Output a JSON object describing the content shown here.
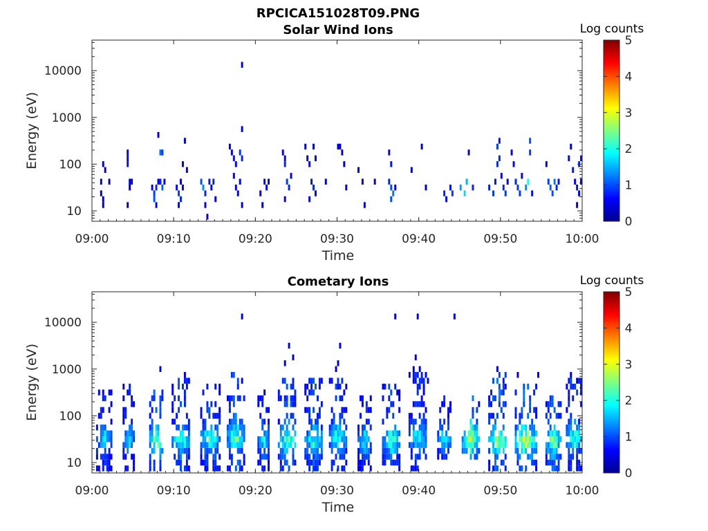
{
  "figure_title": "RPCICA151028T09.PNG",
  "colors": {
    "colormap": [
      "#00008f",
      "#0000ff",
      "#0080ff",
      "#00ffff",
      "#80ff80",
      "#ffff00",
      "#ff8000",
      "#ff0000",
      "#800000"
    ],
    "axes": "#262626",
    "background": "#ffffff"
  },
  "chart_data": [
    {
      "type": "heatmap",
      "title": "Solar Wind Ions",
      "xlabel": "Time",
      "ylabel": "Energy (eV)",
      "x_ticks": [
        "09:00",
        "09:10",
        "09:20",
        "09:30",
        "09:40",
        "09:50",
        "10:00"
      ],
      "x_range_minutes": [
        0,
        60
      ],
      "y_scale": "log",
      "y_range": [
        6,
        45000
      ],
      "y_ticks": [
        10,
        100,
        1000,
        10000
      ],
      "y_tick_labels": [
        "10",
        "100",
        "1000",
        "10000"
      ],
      "colorbar": {
        "label": "Log counts",
        "range": [
          0,
          5
        ],
        "ticks": [
          "0",
          "1",
          "2",
          "3",
          "4",
          "5"
        ]
      },
      "bins_per_minute": 4,
      "energy_bins_per_decade": 8,
      "cells": [
        [
          1.0,
          42,
          0.4
        ],
        [
          1.0,
          26,
          0.3
        ],
        [
          1.2,
          16,
          0.3
        ],
        [
          1.2,
          95,
          0.4
        ],
        [
          1.3,
          13,
          0.2
        ],
        [
          1.4,
          81,
          0.3
        ],
        [
          1.9,
          42,
          0.3
        ],
        [
          4.3,
          180,
          0.5
        ],
        [
          4.3,
          130,
          0.6
        ],
        [
          4.3,
          95,
          0.7
        ],
        [
          4.5,
          42,
          0.5
        ],
        [
          4.5,
          31,
          0.4
        ],
        [
          4.3,
          13,
          0.3
        ],
        [
          4.8,
          42,
          0.3
        ],
        [
          7.3,
          31,
          0.6
        ],
        [
          7.5,
          16,
          1.0
        ],
        [
          7.5,
          22,
          0.9
        ],
        [
          7.8,
          31,
          0.8
        ],
        [
          7.8,
          13,
          0.6
        ],
        [
          8.0,
          42,
          0.5
        ],
        [
          8.0,
          450,
          0.4
        ],
        [
          8.3,
          200,
          1.2
        ],
        [
          8.5,
          160,
          0.9
        ],
        [
          8.3,
          42,
          0.8
        ],
        [
          8.5,
          31,
          1.1
        ],
        [
          8.7,
          42,
          0.6
        ],
        [
          10.3,
          31,
          0.7
        ],
        [
          10.5,
          22,
          0.9
        ],
        [
          10.7,
          16,
          0.8
        ],
        [
          10.5,
          13,
          0.6
        ],
        [
          10.8,
          42,
          0.5
        ],
        [
          11.0,
          31,
          0.6
        ],
        [
          11.0,
          110,
          0.4
        ],
        [
          11.3,
          330,
          0.4
        ],
        [
          11.5,
          70,
          0.5
        ],
        [
          13.3,
          42,
          1.0
        ],
        [
          13.5,
          31,
          1.3
        ],
        [
          13.8,
          22,
          0.8
        ],
        [
          13.8,
          13,
          0.5
        ],
        [
          14.0,
          7,
          0.4
        ],
        [
          14.3,
          42,
          0.7
        ],
        [
          14.5,
          31,
          0.6
        ],
        [
          14.8,
          42,
          0.8
        ],
        [
          15.0,
          16,
          0.5
        ],
        [
          16.8,
          270,
          0.5
        ],
        [
          17.0,
          200,
          0.6
        ],
        [
          17.3,
          130,
          0.7
        ],
        [
          17.5,
          95,
          0.6
        ],
        [
          17.3,
          56,
          0.6
        ],
        [
          17.5,
          31,
          0.5
        ],
        [
          17.8,
          22,
          0.5
        ],
        [
          18.0,
          200,
          0.9
        ],
        [
          18.3,
          150,
          0.8
        ],
        [
          18.3,
          500,
          0.4
        ],
        [
          18.3,
          15000,
          0.4
        ],
        [
          18.0,
          42,
          0.5
        ],
        [
          18.3,
          13,
          0.4
        ],
        [
          20.5,
          22,
          0.5
        ],
        [
          20.8,
          13,
          0.4
        ],
        [
          21.0,
          42,
          0.6
        ],
        [
          21.3,
          31,
          0.5
        ],
        [
          21.5,
          42,
          0.4
        ],
        [
          23.3,
          200,
          0.5
        ],
        [
          23.5,
          130,
          0.6
        ],
        [
          23.5,
          95,
          0.8
        ],
        [
          23.8,
          42,
          0.9
        ],
        [
          24.0,
          31,
          0.8
        ],
        [
          23.5,
          16,
          0.5
        ],
        [
          24.3,
          56,
          0.5
        ],
        [
          26.0,
          210,
          0.4
        ],
        [
          26.3,
          130,
          0.5
        ],
        [
          26.5,
          95,
          0.6
        ],
        [
          26.8,
          42,
          0.7
        ],
        [
          27.0,
          31,
          0.8
        ],
        [
          27.3,
          22,
          0.6
        ],
        [
          26.5,
          16,
          0.5
        ],
        [
          27.0,
          220,
          0.4
        ],
        [
          27.3,
          130,
          0.6
        ],
        [
          28.5,
          42,
          0.3
        ],
        [
          30.0,
          270,
          0.4
        ],
        [
          30.3,
          230,
          0.4
        ],
        [
          30.5,
          180,
          0.3
        ],
        [
          30.8,
          110,
          0.3
        ],
        [
          31.0,
          31,
          0.3
        ],
        [
          32.5,
          70,
          0.3
        ],
        [
          33.0,
          42,
          0.3
        ],
        [
          33.3,
          13,
          0.3
        ],
        [
          34.5,
          42,
          0.3
        ],
        [
          36.3,
          180,
          0.6
        ],
        [
          36.5,
          95,
          0.7
        ],
        [
          36.3,
          42,
          0.8
        ],
        [
          36.5,
          31,
          1.0
        ],
        [
          36.8,
          22,
          1.2
        ],
        [
          36.5,
          16,
          1.0
        ],
        [
          37.0,
          31,
          0.6
        ],
        [
          39.0,
          70,
          0.3
        ],
        [
          40.3,
          210,
          0.3
        ],
        [
          40.8,
          31,
          0.3
        ],
        [
          43.0,
          22,
          0.8
        ],
        [
          43.3,
          16,
          0.6
        ],
        [
          43.8,
          31,
          0.7
        ],
        [
          44.0,
          22,
          0.9
        ],
        [
          45.0,
          31,
          1.4
        ],
        [
          45.5,
          22,
          1.7
        ],
        [
          45.8,
          42,
          1.5
        ],
        [
          46.0,
          160,
          0.4
        ],
        [
          46.5,
          31,
          0.8
        ],
        [
          48.5,
          31,
          0.8
        ],
        [
          49.0,
          22,
          0.9
        ],
        [
          49.3,
          42,
          0.7
        ],
        [
          49.5,
          95,
          0.8
        ],
        [
          49.5,
          250,
          0.9
        ],
        [
          49.8,
          330,
          0.7
        ],
        [
          49.8,
          130,
          0.8
        ],
        [
          50.0,
          56,
          0.6
        ],
        [
          50.3,
          31,
          0.8
        ],
        [
          50.5,
          22,
          0.9
        ],
        [
          50.8,
          42,
          0.6
        ],
        [
          51.3,
          160,
          0.5
        ],
        [
          51.5,
          95,
          0.6
        ],
        [
          51.8,
          42,
          0.8
        ],
        [
          52.0,
          31,
          0.9
        ],
        [
          52.3,
          22,
          0.9
        ],
        [
          52.5,
          56,
          0.5
        ],
        [
          53.0,
          31,
          1.3
        ],
        [
          53.3,
          42,
          2.0
        ],
        [
          53.5,
          290,
          1.0
        ],
        [
          53.5,
          200,
          0.9
        ],
        [
          53.8,
          22,
          0.7
        ],
        [
          55.5,
          95,
          0.3
        ],
        [
          55.8,
          42,
          0.9
        ],
        [
          56.0,
          31,
          1.1
        ],
        [
          56.3,
          22,
          1.0
        ],
        [
          56.5,
          42,
          1.2
        ],
        [
          56.8,
          31,
          0.8
        ],
        [
          57.0,
          42,
          0.7
        ],
        [
          58.3,
          120,
          0.6
        ],
        [
          58.5,
          270,
          0.4
        ],
        [
          58.8,
          70,
          0.7
        ],
        [
          59.0,
          42,
          0.6
        ],
        [
          59.3,
          31,
          0.7
        ],
        [
          59.5,
          22,
          0.6
        ],
        [
          59.3,
          13,
          0.5
        ],
        [
          59.5,
          95,
          0.8
        ],
        [
          59.8,
          130,
          0.6
        ],
        [
          59.8,
          42,
          0.5
        ]
      ]
    },
    {
      "type": "heatmap",
      "title": "Cometary Ions",
      "xlabel": "Time",
      "ylabel": "Energy (eV)",
      "x_ticks": [
        "09:00",
        "09:10",
        "09:20",
        "09:30",
        "09:40",
        "09:50",
        "10:00"
      ],
      "x_range_minutes": [
        0,
        60
      ],
      "y_scale": "log",
      "y_range": [
        6,
        45000
      ],
      "y_ticks": [
        10,
        100,
        1000,
        10000
      ],
      "y_tick_labels": [
        "10",
        "100",
        "1000",
        "10000"
      ],
      "colorbar": {
        "label": "Log counts",
        "range": [
          0,
          5
        ],
        "ticks": [
          "0",
          "1",
          "2",
          "3",
          "4",
          "5"
        ]
      },
      "bins_per_minute": 4,
      "energy_bins_per_decade": 8,
      "clusters": [
        {
          "t": 1.3,
          "width": 1.8,
          "e_low": 7,
          "e_high": 320,
          "peak": 1.8
        },
        {
          "t": 4.5,
          "width": 1.3,
          "e_low": 7,
          "e_high": 400,
          "peak": 1.9
        },
        {
          "t": 7.7,
          "width": 1.6,
          "e_low": 8,
          "e_high": 400,
          "peak": 2.8
        },
        {
          "t": 10.8,
          "width": 2.0,
          "e_low": 8,
          "e_high": 600,
          "peak": 2.3
        },
        {
          "t": 14.3,
          "width": 2.3,
          "e_low": 7,
          "e_high": 450,
          "peak": 2.3
        },
        {
          "t": 17.5,
          "width": 2.0,
          "e_low": 7,
          "e_high": 700,
          "peak": 2.5
        },
        {
          "t": 21.0,
          "width": 1.4,
          "e_low": 8,
          "e_high": 300,
          "peak": 1.9
        },
        {
          "t": 23.8,
          "width": 2.2,
          "e_low": 8,
          "e_high": 650,
          "peak": 2.5
        },
        {
          "t": 27.0,
          "width": 2.2,
          "e_low": 8,
          "e_high": 600,
          "peak": 2.2
        },
        {
          "t": 30.0,
          "width": 2.0,
          "e_low": 7,
          "e_high": 650,
          "peak": 2.2
        },
        {
          "t": 33.2,
          "width": 1.6,
          "e_low": 8,
          "e_high": 260,
          "peak": 1.9
        },
        {
          "t": 36.5,
          "width": 2.0,
          "e_low": 8,
          "e_high": 500,
          "peak": 2.3
        },
        {
          "t": 39.8,
          "width": 2.2,
          "e_low": 7,
          "e_high": 700,
          "peak": 2.0
        },
        {
          "t": 43.0,
          "width": 1.6,
          "e_low": 13,
          "e_high": 300,
          "peak": 1.9
        },
        {
          "t": 46.2,
          "width": 2.0,
          "e_low": 13,
          "e_high": 300,
          "peak": 2.9
        },
        {
          "t": 49.5,
          "width": 2.2,
          "e_low": 8,
          "e_high": 800,
          "peak": 2.8
        },
        {
          "t": 53.0,
          "width": 2.5,
          "e_low": 8,
          "e_high": 500,
          "peak": 3.0
        },
        {
          "t": 56.3,
          "width": 1.8,
          "e_low": 8,
          "e_high": 300,
          "peak": 2.6
        },
        {
          "t": 59.0,
          "width": 1.8,
          "e_low": 7,
          "e_high": 650,
          "peak": 2.3
        }
      ],
      "sparse_points": [
        [
          18.3,
          15000,
          0.5
        ],
        [
          37.0,
          13500,
          0.5
        ],
        [
          39.7,
          12000,
          0.5
        ],
        [
          44.2,
          15000,
          0.5
        ],
        [
          24.0,
          3000,
          0.5
        ],
        [
          23.5,
          1300,
          0.4
        ],
        [
          24.5,
          1600,
          0.4
        ],
        [
          30.3,
          2800,
          0.5
        ],
        [
          30.0,
          1500,
          0.4
        ],
        [
          29.8,
          1000,
          0.4
        ],
        [
          39.5,
          1800,
          0.4
        ],
        [
          39.3,
          900,
          0.4
        ],
        [
          40.0,
          1100,
          0.4
        ],
        [
          41.0,
          500,
          0.4
        ],
        [
          8.3,
          900,
          0.5
        ],
        [
          11.3,
          700,
          0.4
        ],
        [
          49.5,
          950,
          0.5
        ],
        [
          52.0,
          800,
          0.4
        ],
        [
          54.5,
          650,
          0.4
        ],
        [
          58.5,
          750,
          0.5
        ],
        [
          59.3,
          500,
          0.4
        ],
        [
          21.0,
          330,
          0.4
        ],
        [
          37.5,
          330,
          0.4
        ]
      ]
    }
  ]
}
